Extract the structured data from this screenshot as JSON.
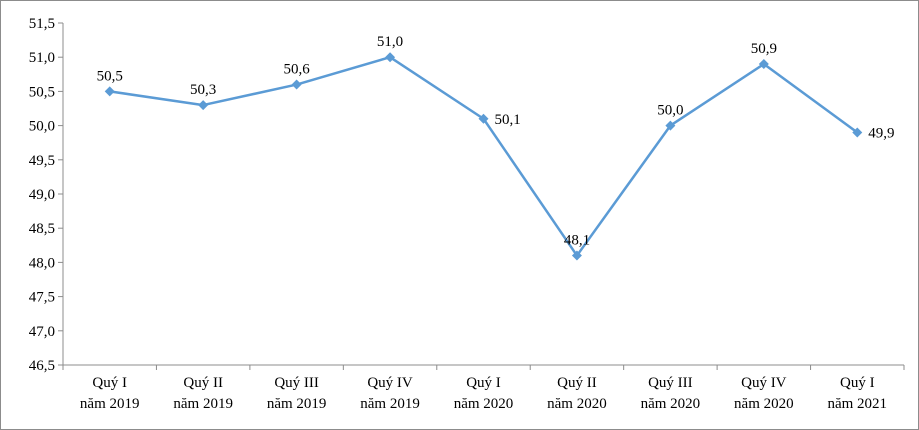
{
  "chart_data": {
    "type": "line",
    "title": "",
    "xlabel": "",
    "ylabel": "",
    "ylim": [
      46.5,
      51.5
    ],
    "yticks": [
      "46,5",
      "47,0",
      "47,5",
      "48,0",
      "48,5",
      "49,0",
      "49,5",
      "50,0",
      "50,5",
      "51,0",
      "51,5"
    ],
    "categories": [
      [
        "Quý I",
        "năm 2019"
      ],
      [
        "Quý II",
        "năm 2019"
      ],
      [
        "Quý III",
        "năm 2019"
      ],
      [
        "Quý IV",
        "năm 2019"
      ],
      [
        "Quý I",
        "năm 2020"
      ],
      [
        "Quý II",
        "năm 2020"
      ],
      [
        "Quý III",
        "năm 2020"
      ],
      [
        "Quý IV",
        "năm 2020"
      ],
      [
        "Quý I",
        "năm 2021"
      ]
    ],
    "series": [
      {
        "values": [
          50.5,
          50.3,
          50.6,
          51.0,
          50.1,
          48.1,
          50.0,
          50.9,
          49.9
        ],
        "data_labels": [
          "50,5",
          "50,3",
          "50,6",
          "51,0",
          "50,1",
          "48,1",
          "50,0",
          "50,9",
          "49,9"
        ],
        "color": "#5b9bd5"
      }
    ],
    "grid": false,
    "legend": "none"
  }
}
